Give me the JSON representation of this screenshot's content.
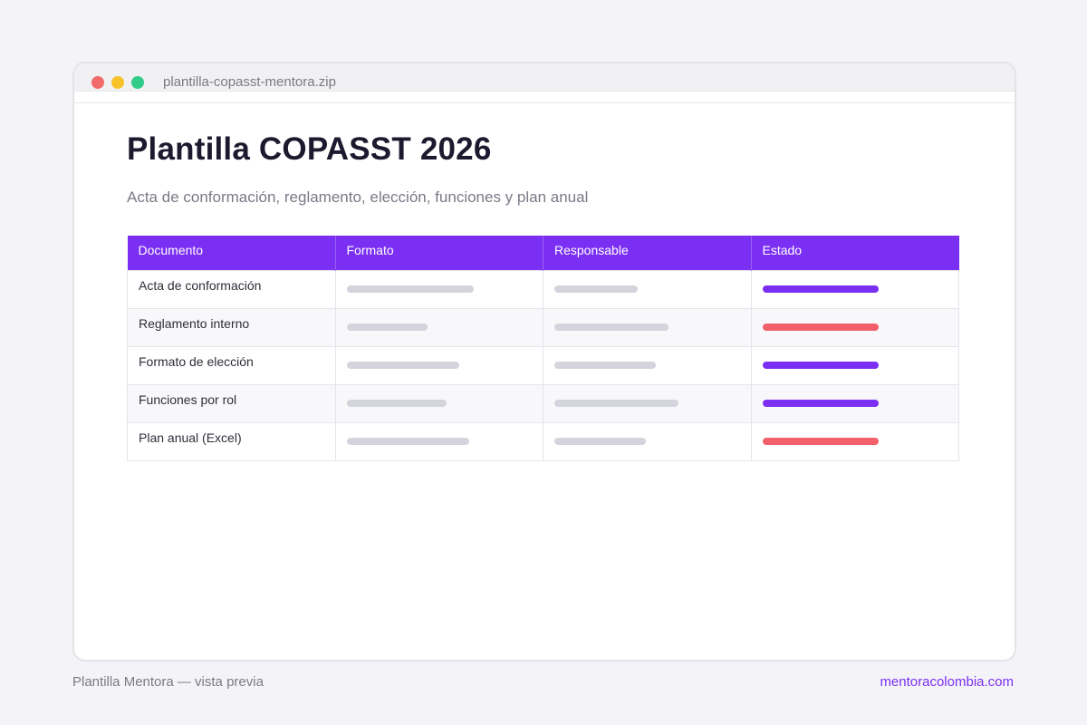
{
  "window": {
    "title": "plantilla-copasst-mentora.zip",
    "controls": [
      {
        "name": "close",
        "color": "#f26b6b"
      },
      {
        "name": "minimize",
        "color": "#f8c22a"
      },
      {
        "name": "maximize",
        "color": "#32cc88"
      }
    ]
  },
  "page": {
    "title": "Plantilla COPASST 2026",
    "subtitle": "Acta de conformación, reglamento, elección, funciones y plan anual"
  },
  "table": {
    "headers": [
      "Documento",
      "Formato",
      "Responsable",
      "Estado"
    ],
    "rows": [
      {
        "documento": "Acta de conformación",
        "formato_fill": 0.61,
        "responsable_fill": 0.4,
        "estado_color": "#7b2ff2"
      },
      {
        "documento": "Reglamento interno",
        "formato_fill": 0.39,
        "responsable_fill": 0.55,
        "estado_color": "#f2616b"
      },
      {
        "documento": "Formato de elección",
        "formato_fill": 0.54,
        "responsable_fill": 0.49,
        "estado_color": "#7b2ff2"
      },
      {
        "documento": "Funciones por rol",
        "formato_fill": 0.48,
        "responsable_fill": 0.6,
        "estado_color": "#7b2ff2"
      },
      {
        "documento": "Plan anual (Excel)",
        "formato_fill": 0.59,
        "responsable_fill": 0.44,
        "estado_color": "#f2616b"
      }
    ]
  },
  "footer": {
    "left": "Plantilla Mentora — vista previa",
    "right": "mentoracolombia.com"
  },
  "colors": {
    "accent": "#7b2ff2",
    "alert": "#f2616b",
    "placeholder_bar": "#d4d4dc"
  }
}
